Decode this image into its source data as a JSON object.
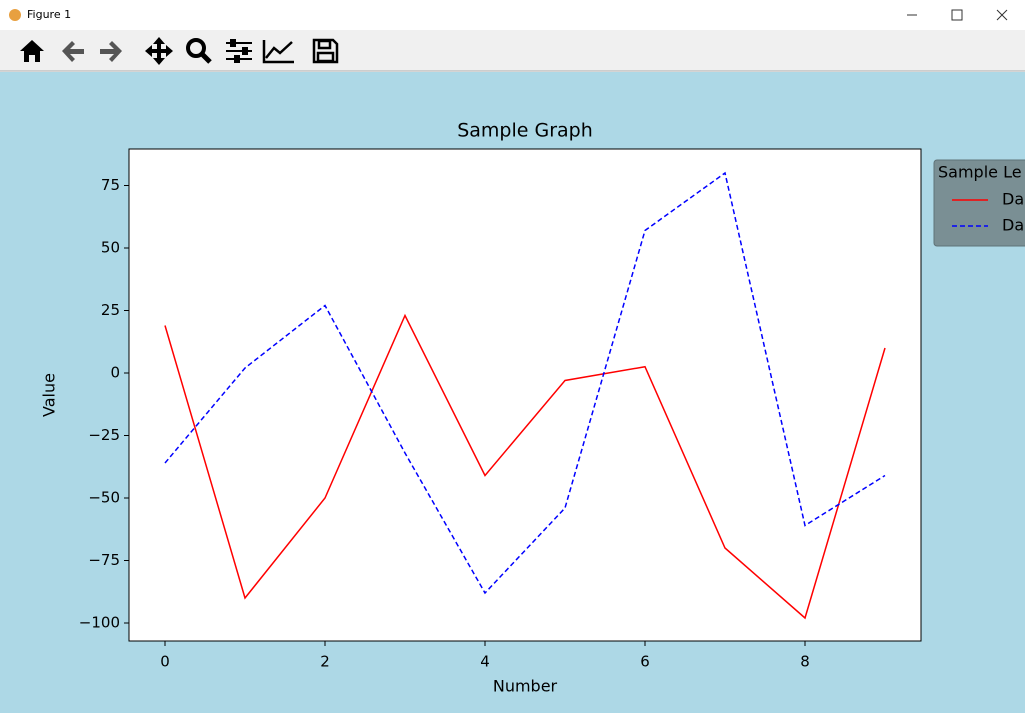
{
  "window_title": "Figure 1",
  "chart_data": {
    "type": "line",
    "title": "Sample Graph",
    "xlabel": "Number",
    "ylabel": "Value",
    "x": [
      0,
      1,
      2,
      3,
      4,
      5,
      6,
      7,
      8,
      9
    ],
    "series": [
      {
        "name": "Da",
        "color": "#ff0000",
        "dash": "solid",
        "values": [
          19,
          -90,
          -50,
          23,
          -41,
          -3,
          2.5,
          -70,
          -98,
          10
        ]
      },
      {
        "name": "Da",
        "color": "#0000ff",
        "dash": "dashed",
        "values": [
          -36,
          2,
          27,
          -32,
          -88,
          -54,
          57,
          80,
          -61,
          -41
        ]
      }
    ],
    "xlim": [
      -0.45,
      9.45
    ],
    "ylim": [
      -107.2,
      89.6
    ],
    "xticks": [
      0,
      2,
      4,
      6,
      8
    ],
    "yticks": [
      {
        "value": -100,
        "label": "−100"
      },
      {
        "value": -75,
        "label": "−75"
      },
      {
        "value": -50,
        "label": "−50"
      },
      {
        "value": -25,
        "label": "−25"
      },
      0,
      25,
      50,
      75
    ],
    "legend_title": "Sample Le",
    "legend_position": "outside-upper-right"
  }
}
